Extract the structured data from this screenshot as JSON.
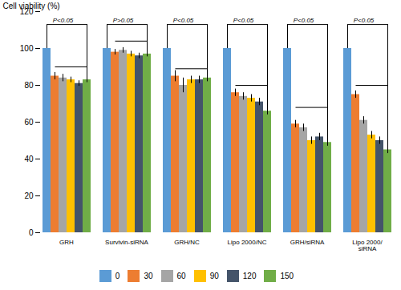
{
  "chart_data": {
    "type": "bar",
    "categories": [
      "GRH",
      "Survivin-siRNA",
      "GRH/NC",
      "Lipo 2000/NC",
      "GRH/siRNA",
      "Lipo 2000/\nsiRNA"
    ],
    "series": [
      {
        "name": "0",
        "color": "#5B9BD5",
        "values": [
          100,
          100,
          100,
          100,
          100,
          100
        ],
        "errors": [
          0,
          0,
          0,
          0,
          0,
          0
        ]
      },
      {
        "name": "30",
        "color": "#ED7D31",
        "values": [
          85,
          98,
          85,
          76,
          59,
          75
        ],
        "errors": [
          2,
          1.5,
          3,
          2,
          2,
          2
        ]
      },
      {
        "name": "60",
        "color": "#A5A5A5",
        "values": [
          84,
          99,
          80,
          74,
          57,
          61
        ],
        "errors": [
          2,
          1.5,
          4,
          2,
          2,
          2
        ]
      },
      {
        "name": "90",
        "color": "#FFC000",
        "values": [
          83,
          97,
          83,
          73,
          50,
          53
        ],
        "errors": [
          1.5,
          1.5,
          2,
          2,
          2,
          2
        ]
      },
      {
        "name": "120",
        "color": "#44546A",
        "values": [
          81,
          96,
          83,
          71,
          52,
          50
        ],
        "errors": [
          1.5,
          1.5,
          2,
          2,
          2,
          2
        ]
      },
      {
        "name": "150",
        "color": "#70AD47",
        "values": [
          83,
          97,
          84,
          66,
          49,
          45
        ],
        "errors": [
          1.5,
          1.5,
          2,
          2,
          2,
          2
        ]
      }
    ],
    "ylabel": "Cell viability (%)",
    "ylim": [
      0,
      120
    ],
    "yticks": [
      0,
      20,
      40,
      60,
      80,
      100,
      120
    ],
    "grid": false,
    "legend": "bottom",
    "significance": [
      {
        "label": "P<0.05",
        "y_top": 113,
        "y_line": 90
      },
      {
        "label": "P>0.05",
        "y_top": 113,
        "y_line": 104
      },
      {
        "label": "P<0.05",
        "y_top": 113,
        "y_line": 89
      },
      {
        "label": "P<0.05",
        "y_top": 113,
        "y_line": 80
      },
      {
        "label": "P<0.05",
        "y_top": 113,
        "y_line": 68
      },
      {
        "label": "P<0.05",
        "y_top": 113,
        "y_line": 80
      }
    ]
  }
}
